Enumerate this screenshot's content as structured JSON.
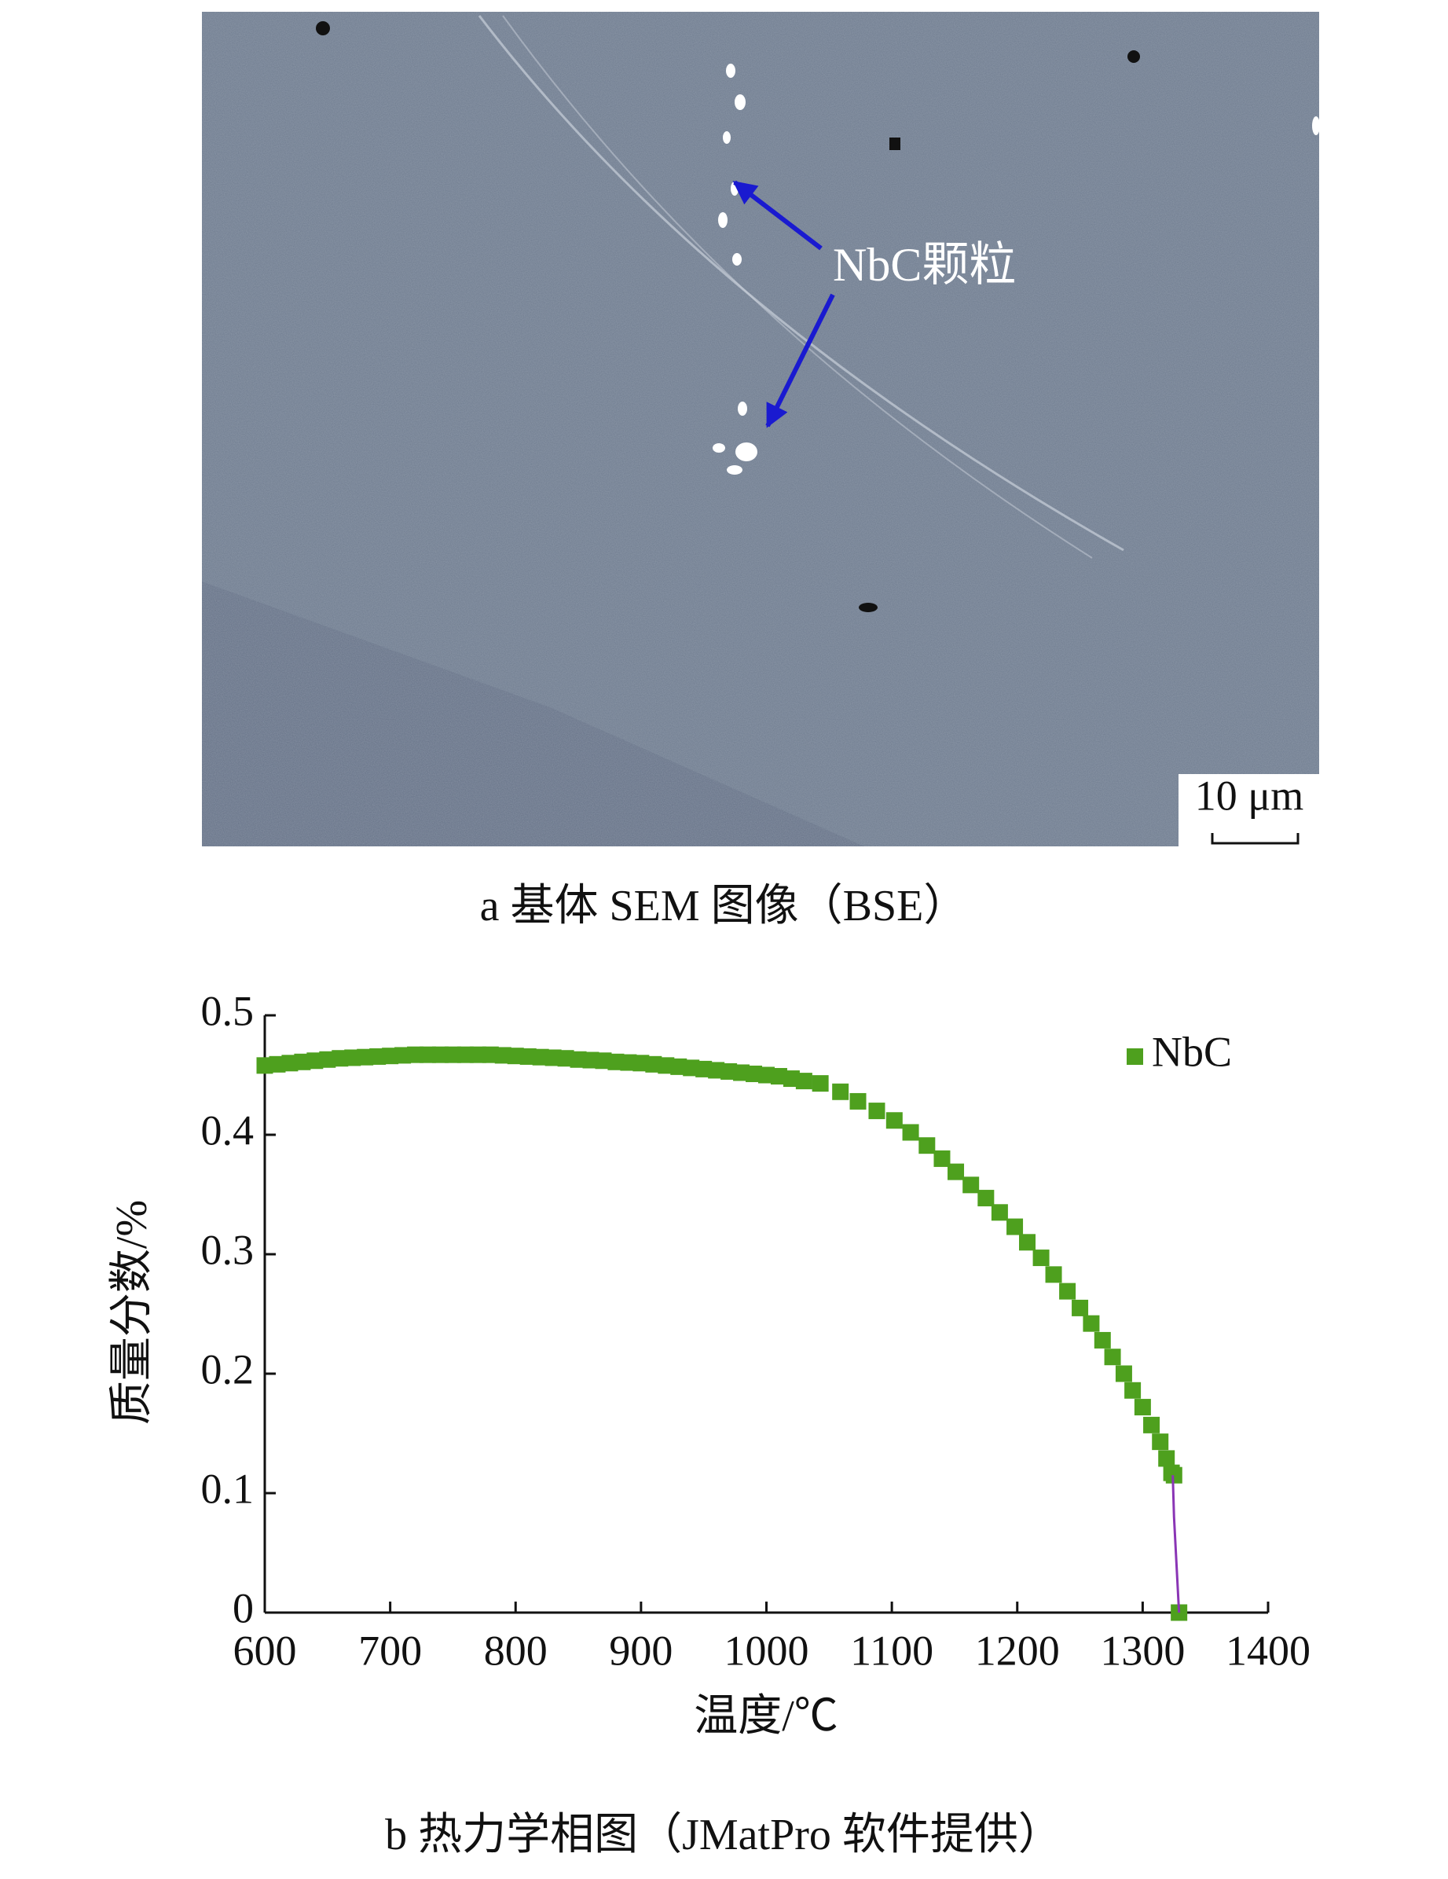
{
  "figure_a": {
    "annotation": "NbC颗粒",
    "scale_bar": "10 μm",
    "caption": "a 基体 SEM 图像（BSE）"
  },
  "chart_data": {
    "type": "scatter",
    "caption": "b 热力学相图（JMatPro 软件提供）",
    "xlabel": "温度/℃",
    "ylabel": "质量分数/%",
    "xlim": [
      600,
      1400
    ],
    "xticks": [
      600,
      700,
      800,
      900,
      1000,
      1100,
      1200,
      1300,
      1400
    ],
    "ylim": [
      0,
      0.5
    ],
    "yticks": [
      0,
      0.1,
      0.2,
      0.3,
      0.4,
      0.5
    ],
    "legend": "upper right",
    "marker": "square",
    "series": [
      {
        "name": "NbC",
        "color": "#4ea01e",
        "x": [
          600,
          610,
          620,
          630,
          640,
          650,
          660,
          670,
          680,
          690,
          700,
          710,
          720,
          730,
          740,
          750,
          760,
          770,
          780,
          790,
          800,
          810,
          820,
          830,
          840,
          850,
          860,
          870,
          880,
          890,
          900,
          910,
          920,
          930,
          940,
          950,
          960,
          970,
          980,
          990,
          1000,
          1010,
          1020,
          1030,
          1043,
          1059,
          1073,
          1088,
          1102,
          1115,
          1128,
          1140,
          1151,
          1163,
          1175,
          1186,
          1198,
          1208,
          1219,
          1229,
          1240,
          1250,
          1259,
          1268,
          1276,
          1285,
          1292,
          1300,
          1307,
          1314,
          1319,
          1323,
          1325,
          1329
        ],
        "values": [
          0.458,
          0.459,
          0.46,
          0.461,
          0.462,
          0.463,
          0.464,
          0.4645,
          0.465,
          0.4655,
          0.466,
          0.4665,
          0.467,
          0.467,
          0.467,
          0.467,
          0.467,
          0.467,
          0.467,
          0.4665,
          0.466,
          0.4655,
          0.465,
          0.4645,
          0.464,
          0.463,
          0.4625,
          0.462,
          0.461,
          0.4605,
          0.46,
          0.459,
          0.458,
          0.457,
          0.456,
          0.455,
          0.454,
          0.453,
          0.452,
          0.451,
          0.45,
          0.449,
          0.447,
          0.445,
          0.443,
          0.436,
          0.428,
          0.42,
          0.412,
          0.402,
          0.391,
          0.38,
          0.369,
          0.358,
          0.347,
          0.335,
          0.323,
          0.31,
          0.297,
          0.283,
          0.269,
          0.255,
          0.242,
          0.228,
          0.214,
          0.2,
          0.186,
          0.172,
          0.157,
          0.143,
          0.129,
          0.117,
          0.115,
          0
        ]
      },
      {
        "color": "#8a35b5",
        "style": "line",
        "x": [
          1324,
          1325,
          1327,
          1329
        ],
        "values": [
          0.115,
          0.08,
          0.04,
          0
        ]
      }
    ]
  }
}
